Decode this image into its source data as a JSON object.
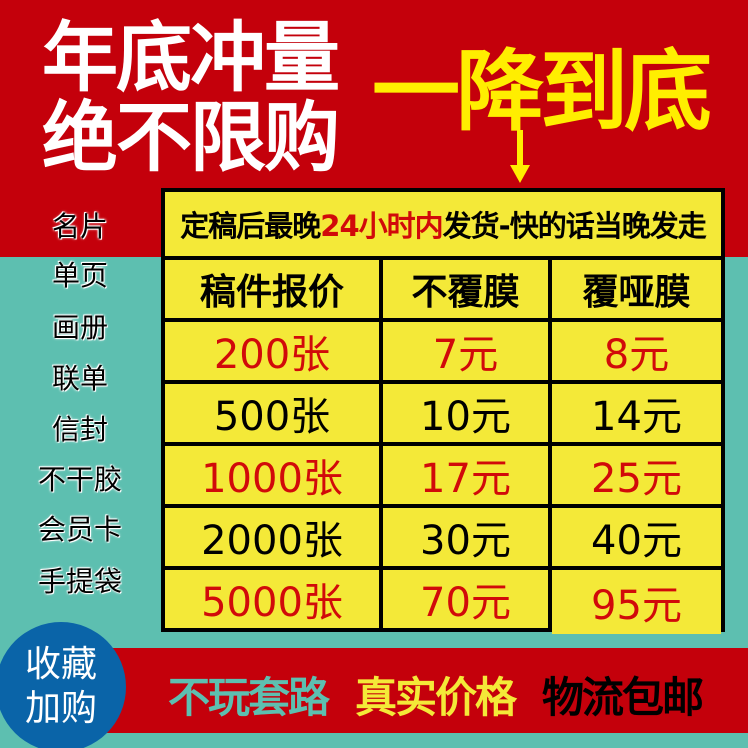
{
  "headline": {
    "line1": "年底冲量",
    "line2": "绝不限购",
    "promo": "一降到底"
  },
  "categories": [
    "名片",
    "单页",
    "画册",
    "联单",
    "信封",
    "不干胶",
    "会员卡",
    "手提袋"
  ],
  "table": {
    "title_pre": "定稿后最晚",
    "title_highlight": "24小时内",
    "title_post": "发货-快的话当晚发走",
    "headers": [
      "稿件报价",
      "不覆膜",
      "覆哑膜"
    ],
    "rows": [
      {
        "qty": "200张",
        "plain": "7元",
        "matte": "8元",
        "highlight": true
      },
      {
        "qty": "500张",
        "plain": "10元",
        "matte": "14元",
        "highlight": false
      },
      {
        "qty": "1000张",
        "plain": "17元",
        "matte": "25元",
        "highlight": true
      },
      {
        "qty": "2000张",
        "plain": "30元",
        "matte": "40元",
        "highlight": false
      },
      {
        "qty": "5000张",
        "plain": "70元",
        "matte": "95元",
        "highlight": true
      }
    ]
  },
  "favorite_badge": {
    "line1": "收藏",
    "line2": "加购"
  },
  "footer": {
    "tag1": "不玩套路",
    "tag2": "真实价格",
    "tag3": "物流包邮"
  },
  "colors": {
    "red": "#c4000b",
    "teal": "#5dbfb0",
    "yellow": "#f4e938",
    "blue": "#0a64a8"
  }
}
